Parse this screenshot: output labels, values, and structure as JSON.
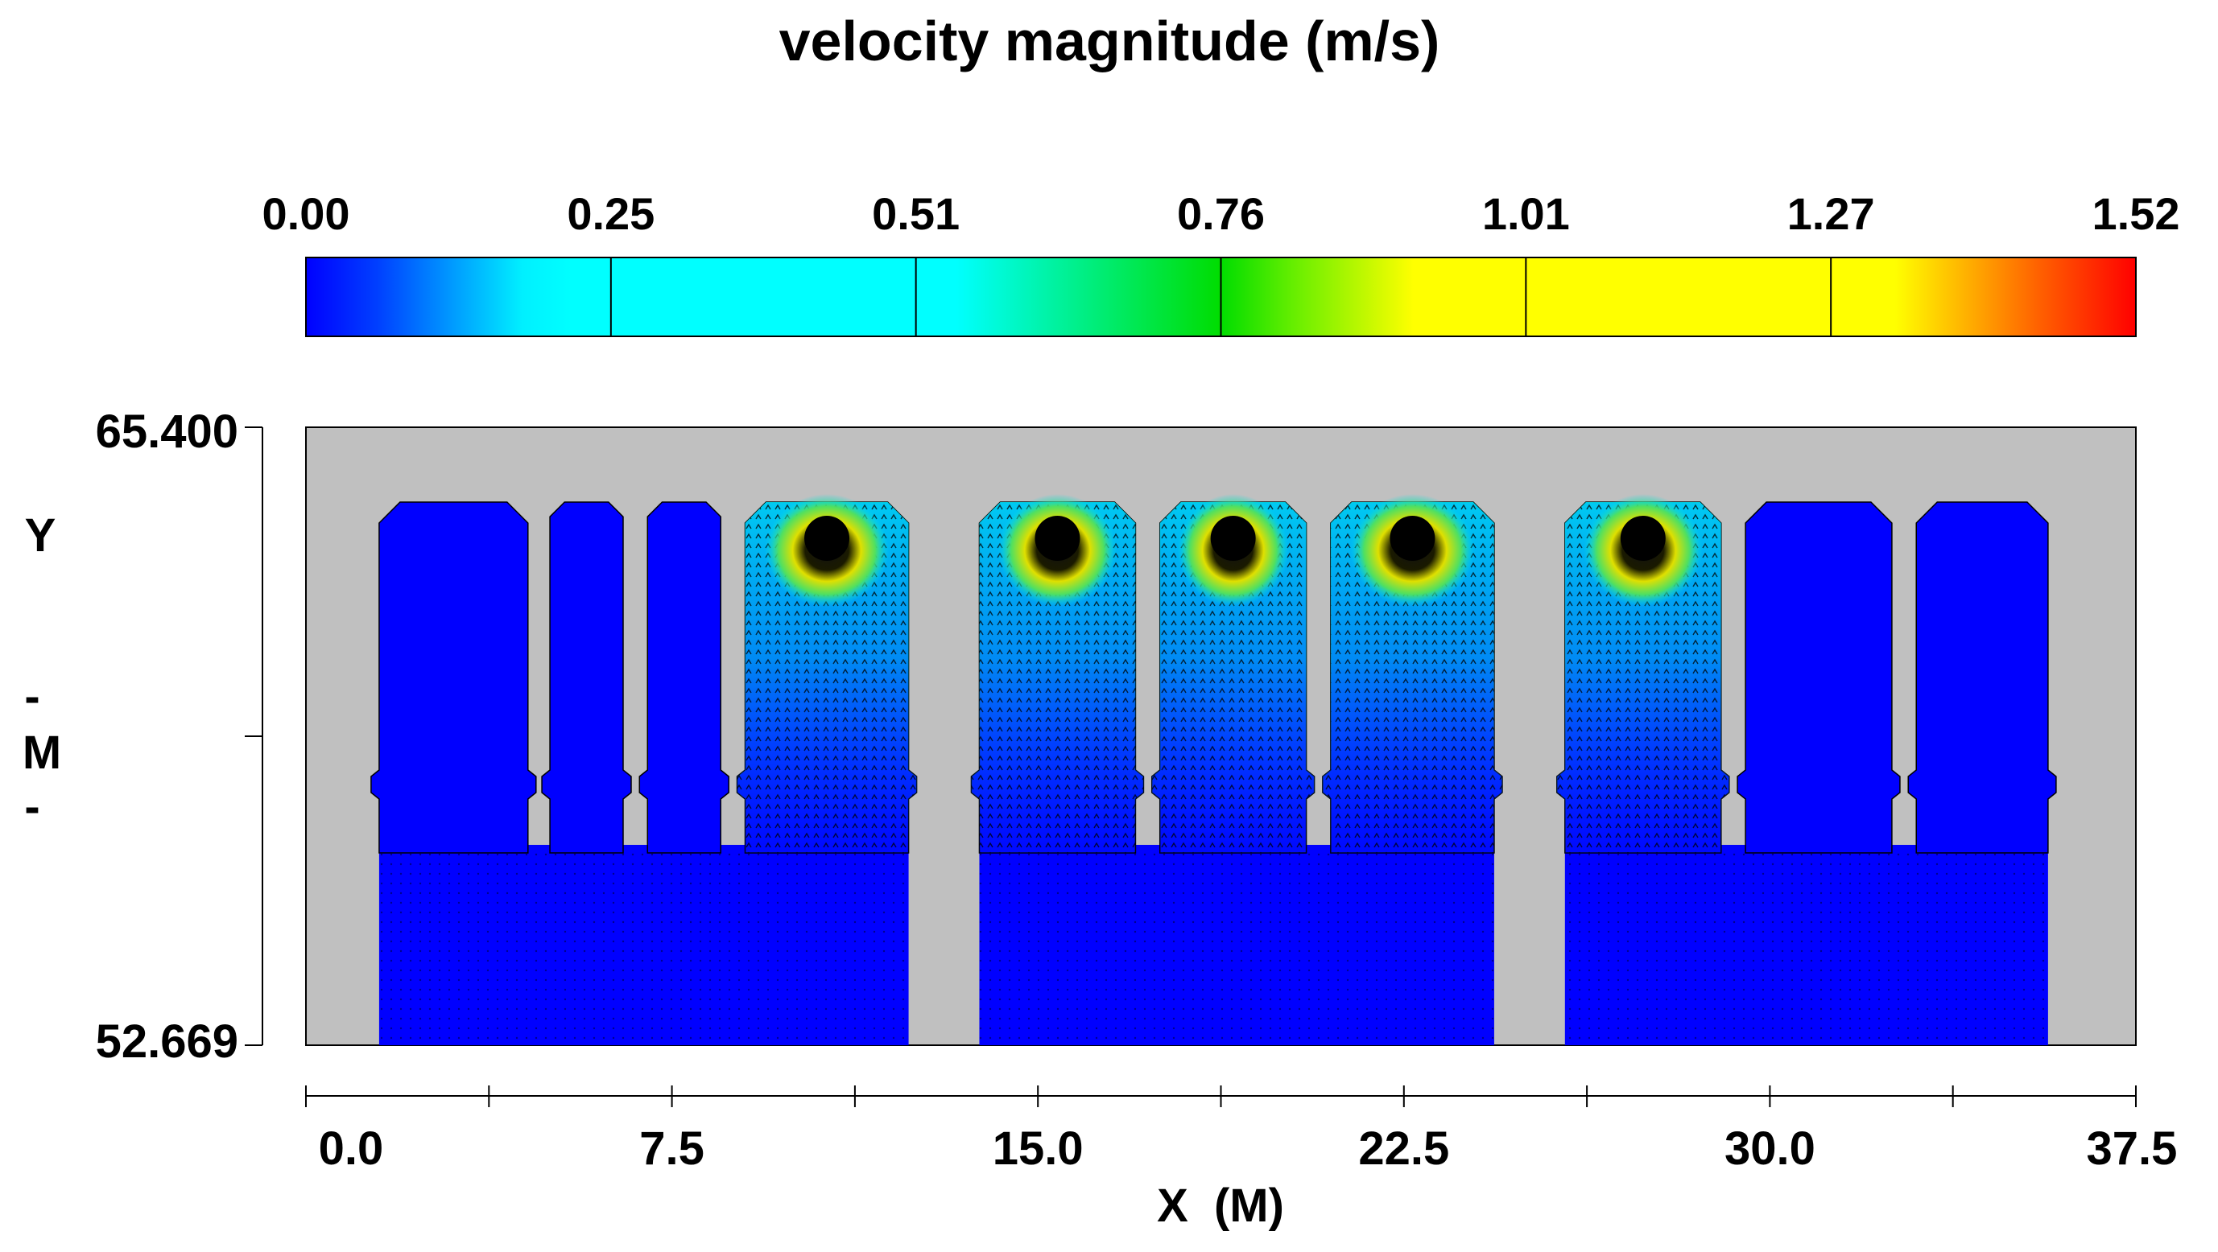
{
  "chart_data": {
    "type": "heatmap",
    "title": "velocity magnitude (m/s)",
    "colorbar": {
      "ticks": [
        "0.00",
        "0.25",
        "0.51",
        "0.76",
        "1.01",
        "1.27",
        "1.52"
      ],
      "range": [
        0.0,
        1.52
      ],
      "stops": [
        {
          "v": 0.0,
          "color": "#0000ff"
        },
        {
          "v": 0.06,
          "color": "#0040ff"
        },
        {
          "v": 0.18,
          "color": "#00f0ff"
        },
        {
          "v": 0.22,
          "color": "#00ffff"
        },
        {
          "v": 0.54,
          "color": "#00ffff"
        },
        {
          "v": 0.76,
          "color": "#00dd00"
        },
        {
          "v": 0.82,
          "color": "#66ee00"
        },
        {
          "v": 0.92,
          "color": "#ffff00"
        },
        {
          "v": 1.32,
          "color": "#ffff00"
        },
        {
          "v": 1.44,
          "color": "#ff6000"
        },
        {
          "v": 1.52,
          "color": "#ff0000"
        }
      ]
    },
    "xaxis": {
      "label": "X  (M)",
      "ticklabels": [
        "0.0",
        "7.5",
        "15.0",
        "22.5",
        "30.0",
        "37.5"
      ],
      "range": [
        0.0,
        37.5
      ],
      "major_ticks": [
        0.0,
        7.5,
        15.0,
        22.5,
        30.0,
        37.5
      ],
      "minor_ticks": [
        3.75,
        11.25,
        18.75,
        26.25,
        33.75
      ]
    },
    "yaxis": {
      "label_chars": [
        "Y",
        "-",
        "M",
        "-"
      ],
      "ticklabels": [
        "65.400",
        "52.669"
      ],
      "range": [
        52.669,
        65.4
      ]
    },
    "background_color": "#c0c0c0",
    "domain_color": "#0000ff",
    "chambers": [
      {
        "x0": 1.5,
        "x1": 12.35,
        "fingers": [
          {
            "x0": 1.5,
            "x1": 4.55,
            "active": false
          },
          {
            "x0": 5.0,
            "x1": 6.5,
            "active": false
          },
          {
            "x0": 7.0,
            "x1": 8.5,
            "active": false
          },
          {
            "x0": 9.0,
            "x1": 12.35,
            "active": true
          }
        ]
      },
      {
        "x0": 13.8,
        "x1": 24.35,
        "fingers": [
          {
            "x0": 13.8,
            "x1": 17.0,
            "active": true
          },
          {
            "x0": 17.5,
            "x1": 20.5,
            "active": true
          },
          {
            "x0": 21.0,
            "x1": 24.35,
            "active": true
          }
        ]
      },
      {
        "x0": 25.8,
        "x1": 35.7,
        "fingers": [
          {
            "x0": 25.8,
            "x1": 29.0,
            "active": true
          },
          {
            "x0": 29.5,
            "x1": 32.5,
            "active": false
          },
          {
            "x0": 33.0,
            "x1": 35.7,
            "active": false
          }
        ]
      }
    ]
  }
}
